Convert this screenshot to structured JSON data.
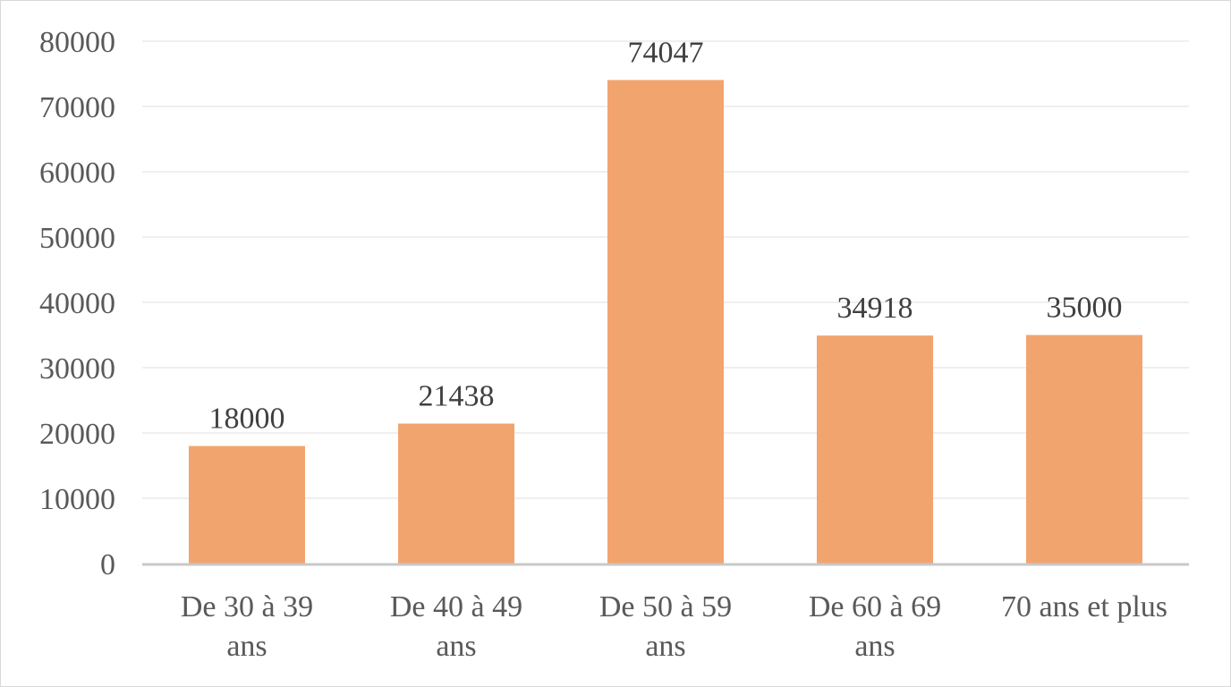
{
  "chart_data": {
    "type": "bar",
    "categories": [
      [
        "De 30 à 39",
        "ans"
      ],
      [
        "De 40 à 49",
        "ans"
      ],
      [
        "De 50 à 59",
        "ans"
      ],
      [
        "De 60 à 69",
        "ans"
      ],
      [
        "70 ans et plus"
      ]
    ],
    "values": [
      18000,
      21438,
      74047,
      34918,
      35000
    ],
    "data_labels": [
      "18000",
      "21438",
      "74047",
      "34918",
      "35000"
    ],
    "yticks": [
      "0",
      "10000",
      "20000",
      "30000",
      "40000",
      "50000",
      "60000",
      "70000",
      "80000"
    ],
    "ylim": [
      0,
      80000
    ],
    "grid": true,
    "bar_color": "#f2a46f",
    "gridline_color": "#efefef",
    "axis_color": "#c8c8c8",
    "text_color": "#595959"
  }
}
